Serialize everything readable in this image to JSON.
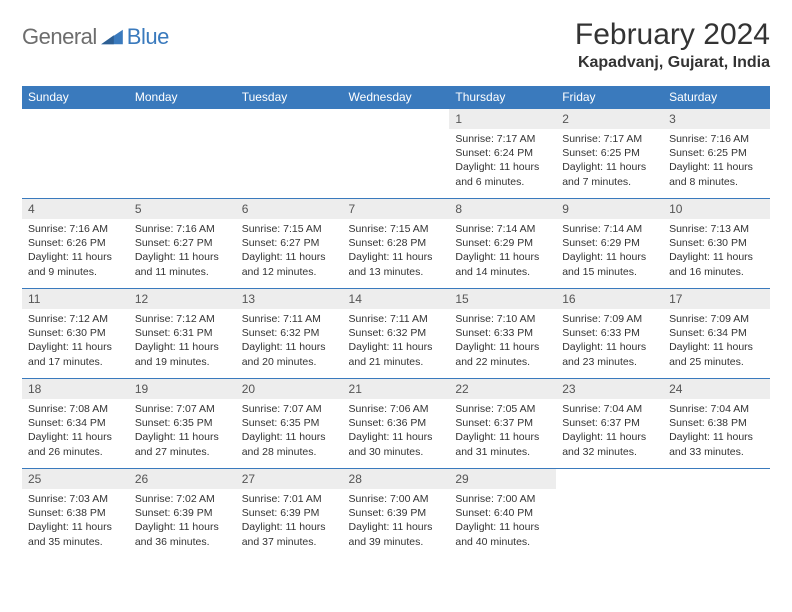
{
  "brand": {
    "general": "General",
    "blue": "Blue"
  },
  "title": "February 2024",
  "location": "Kapadvanj, Gujarat, India",
  "colors": {
    "header_bg": "#3a7abd",
    "header_text": "#ffffff",
    "daynum_bg": "#ededed",
    "text": "#333333",
    "logo_gray": "#6d6d6d",
    "logo_blue": "#3a7abd",
    "cell_border": "#3a7abd",
    "page_bg": "#ffffff"
  },
  "fonts": {
    "title_size": 30,
    "location_size": 16,
    "weekday_size": 12,
    "daynum_size": 12,
    "body_size": 10.5
  },
  "weekdays": [
    "Sunday",
    "Monday",
    "Tuesday",
    "Wednesday",
    "Thursday",
    "Friday",
    "Saturday"
  ],
  "weeks": [
    [
      null,
      null,
      null,
      null,
      {
        "n": "1",
        "sr": "Sunrise: 7:17 AM",
        "ss": "Sunset: 6:24 PM",
        "dl": "Daylight: 11 hours and 6 minutes."
      },
      {
        "n": "2",
        "sr": "Sunrise: 7:17 AM",
        "ss": "Sunset: 6:25 PM",
        "dl": "Daylight: 11 hours and 7 minutes."
      },
      {
        "n": "3",
        "sr": "Sunrise: 7:16 AM",
        "ss": "Sunset: 6:25 PM",
        "dl": "Daylight: 11 hours and 8 minutes."
      }
    ],
    [
      {
        "n": "4",
        "sr": "Sunrise: 7:16 AM",
        "ss": "Sunset: 6:26 PM",
        "dl": "Daylight: 11 hours and 9 minutes."
      },
      {
        "n": "5",
        "sr": "Sunrise: 7:16 AM",
        "ss": "Sunset: 6:27 PM",
        "dl": "Daylight: 11 hours and 11 minutes."
      },
      {
        "n": "6",
        "sr": "Sunrise: 7:15 AM",
        "ss": "Sunset: 6:27 PM",
        "dl": "Daylight: 11 hours and 12 minutes."
      },
      {
        "n": "7",
        "sr": "Sunrise: 7:15 AM",
        "ss": "Sunset: 6:28 PM",
        "dl": "Daylight: 11 hours and 13 minutes."
      },
      {
        "n": "8",
        "sr": "Sunrise: 7:14 AM",
        "ss": "Sunset: 6:29 PM",
        "dl": "Daylight: 11 hours and 14 minutes."
      },
      {
        "n": "9",
        "sr": "Sunrise: 7:14 AM",
        "ss": "Sunset: 6:29 PM",
        "dl": "Daylight: 11 hours and 15 minutes."
      },
      {
        "n": "10",
        "sr": "Sunrise: 7:13 AM",
        "ss": "Sunset: 6:30 PM",
        "dl": "Daylight: 11 hours and 16 minutes."
      }
    ],
    [
      {
        "n": "11",
        "sr": "Sunrise: 7:12 AM",
        "ss": "Sunset: 6:30 PM",
        "dl": "Daylight: 11 hours and 17 minutes."
      },
      {
        "n": "12",
        "sr": "Sunrise: 7:12 AM",
        "ss": "Sunset: 6:31 PM",
        "dl": "Daylight: 11 hours and 19 minutes."
      },
      {
        "n": "13",
        "sr": "Sunrise: 7:11 AM",
        "ss": "Sunset: 6:32 PM",
        "dl": "Daylight: 11 hours and 20 minutes."
      },
      {
        "n": "14",
        "sr": "Sunrise: 7:11 AM",
        "ss": "Sunset: 6:32 PM",
        "dl": "Daylight: 11 hours and 21 minutes."
      },
      {
        "n": "15",
        "sr": "Sunrise: 7:10 AM",
        "ss": "Sunset: 6:33 PM",
        "dl": "Daylight: 11 hours and 22 minutes."
      },
      {
        "n": "16",
        "sr": "Sunrise: 7:09 AM",
        "ss": "Sunset: 6:33 PM",
        "dl": "Daylight: 11 hours and 23 minutes."
      },
      {
        "n": "17",
        "sr": "Sunrise: 7:09 AM",
        "ss": "Sunset: 6:34 PM",
        "dl": "Daylight: 11 hours and 25 minutes."
      }
    ],
    [
      {
        "n": "18",
        "sr": "Sunrise: 7:08 AM",
        "ss": "Sunset: 6:34 PM",
        "dl": "Daylight: 11 hours and 26 minutes."
      },
      {
        "n": "19",
        "sr": "Sunrise: 7:07 AM",
        "ss": "Sunset: 6:35 PM",
        "dl": "Daylight: 11 hours and 27 minutes."
      },
      {
        "n": "20",
        "sr": "Sunrise: 7:07 AM",
        "ss": "Sunset: 6:35 PM",
        "dl": "Daylight: 11 hours and 28 minutes."
      },
      {
        "n": "21",
        "sr": "Sunrise: 7:06 AM",
        "ss": "Sunset: 6:36 PM",
        "dl": "Daylight: 11 hours and 30 minutes."
      },
      {
        "n": "22",
        "sr": "Sunrise: 7:05 AM",
        "ss": "Sunset: 6:37 PM",
        "dl": "Daylight: 11 hours and 31 minutes."
      },
      {
        "n": "23",
        "sr": "Sunrise: 7:04 AM",
        "ss": "Sunset: 6:37 PM",
        "dl": "Daylight: 11 hours and 32 minutes."
      },
      {
        "n": "24",
        "sr": "Sunrise: 7:04 AM",
        "ss": "Sunset: 6:38 PM",
        "dl": "Daylight: 11 hours and 33 minutes."
      }
    ],
    [
      {
        "n": "25",
        "sr": "Sunrise: 7:03 AM",
        "ss": "Sunset: 6:38 PM",
        "dl": "Daylight: 11 hours and 35 minutes."
      },
      {
        "n": "26",
        "sr": "Sunrise: 7:02 AM",
        "ss": "Sunset: 6:39 PM",
        "dl": "Daylight: 11 hours and 36 minutes."
      },
      {
        "n": "27",
        "sr": "Sunrise: 7:01 AM",
        "ss": "Sunset: 6:39 PM",
        "dl": "Daylight: 11 hours and 37 minutes."
      },
      {
        "n": "28",
        "sr": "Sunrise: 7:00 AM",
        "ss": "Sunset: 6:39 PM",
        "dl": "Daylight: 11 hours and 39 minutes."
      },
      {
        "n": "29",
        "sr": "Sunrise: 7:00 AM",
        "ss": "Sunset: 6:40 PM",
        "dl": "Daylight: 11 hours and 40 minutes."
      },
      null,
      null
    ]
  ]
}
